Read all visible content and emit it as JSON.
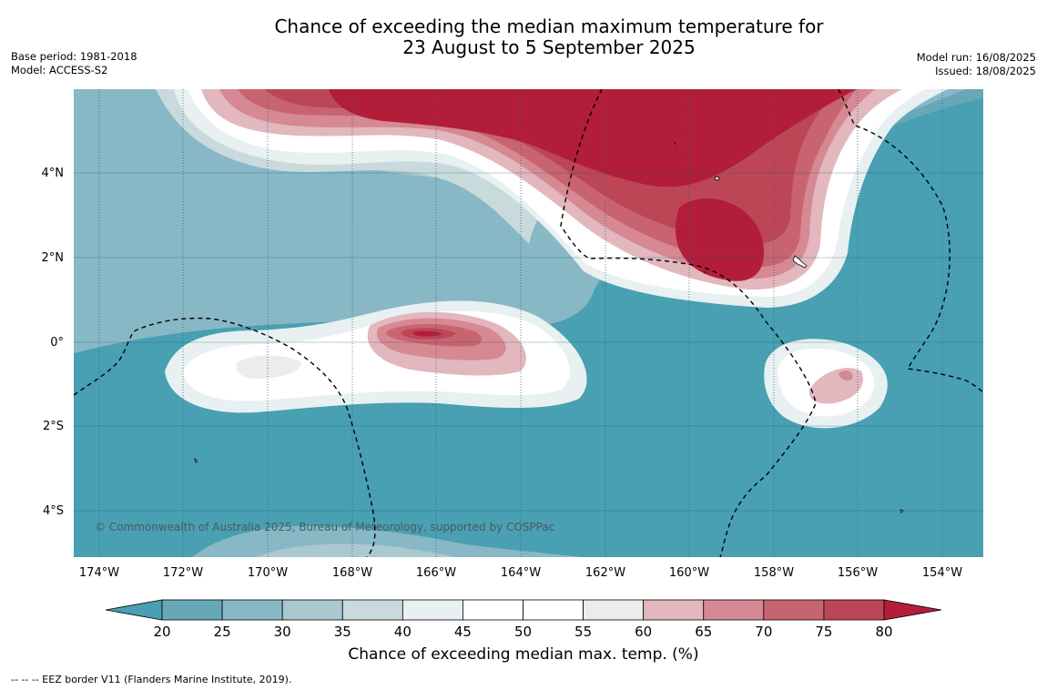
{
  "title_line1": "Chance of exceeding the median maximum temperature for",
  "title_line2": "23 August to 5 September 2025",
  "base_period": "Base period: 1981-2018",
  "model": "Model: ACCESS-S2",
  "model_run": "Model run: 16/08/2025",
  "issued": "Issued: 18/08/2025",
  "lat_labels": [
    "4°N",
    "2°N",
    "0°",
    "2°S",
    "4°S"
  ],
  "lon_labels": [
    "174°W",
    "172°W",
    "170°W",
    "168°W",
    "166°W",
    "164°W",
    "162°W",
    "160°W",
    "158°W",
    "156°W",
    "154°W"
  ],
  "copyright": "© Commonwealth of Australia 2025, Bureau of Meteorology, supported by COSPPac",
  "colorbar": {
    "ticks": [
      "20",
      "25",
      "30",
      "35",
      "40",
      "45",
      "50",
      "55",
      "60",
      "65",
      "70",
      "75",
      "80"
    ],
    "colors": [
      "#66a8b8",
      "#88b8c5",
      "#a9c8d0",
      "#c9dadd",
      "#e8f0f1",
      "#ffffff",
      "#ffffff",
      "#ececec",
      "#e2b7bd",
      "#d68893",
      "#c86470",
      "#bc4656"
    ],
    "low_color": "#48a0b2",
    "high_color": "#b21e3a",
    "label": "Chance of exceeding median max. temp. (%)"
  },
  "footer": "--  --  -- EEZ border V11 (Flanders Marine Institute, 2019)."
}
